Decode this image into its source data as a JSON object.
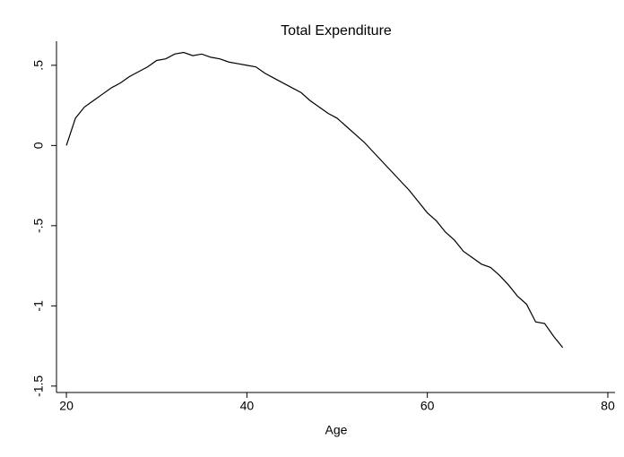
{
  "chart_data": {
    "type": "line",
    "title": "Total Expenditure",
    "x_label": "Age",
    "x": [
      20,
      21,
      22,
      23,
      24,
      25,
      26,
      27,
      28,
      29,
      30,
      31,
      32,
      33,
      34,
      35,
      36,
      37,
      38,
      39,
      40,
      41,
      42,
      43,
      44,
      45,
      46,
      47,
      48,
      49,
      50,
      51,
      52,
      53,
      54,
      55,
      56,
      57,
      58,
      59,
      60,
      61,
      62,
      63,
      64,
      65,
      66,
      67,
      68,
      69,
      70,
      71,
      72,
      73,
      74,
      75
    ],
    "values": [
      0,
      0.17,
      0.24,
      0.28,
      0.32,
      0.36,
      0.39,
      0.43,
      0.46,
      0.49,
      0.53,
      0.54,
      0.57,
      0.58,
      0.56,
      0.57,
      0.55,
      0.54,
      0.52,
      0.51,
      0.5,
      0.49,
      0.45,
      0.42,
      0.39,
      0.36,
      0.33,
      0.28,
      0.24,
      0.2,
      0.17,
      0.12,
      0.07,
      0.02,
      -0.04,
      -0.1,
      -0.16,
      -0.22,
      -0.28,
      -0.35,
      -0.42,
      -0.47,
      -0.54,
      -0.59,
      -0.66,
      -0.7,
      -0.74,
      -0.76,
      -0.81,
      -0.87,
      -0.94,
      -0.99,
      -1.1,
      -1.11,
      -1.19,
      -1.26
    ],
    "color": "#000000",
    "xlim": [
      18.9,
      80.8
    ],
    "xticks": [
      20,
      40,
      60,
      80
    ],
    "ylim": [
      -1.54,
      0.65
    ],
    "yticks": [
      {
        "value": 0.5,
        "label": ".5"
      },
      0,
      {
        "value": -0.5,
        "label": "-.5"
      },
      -1,
      -1.5
    ],
    "grid": false
  }
}
